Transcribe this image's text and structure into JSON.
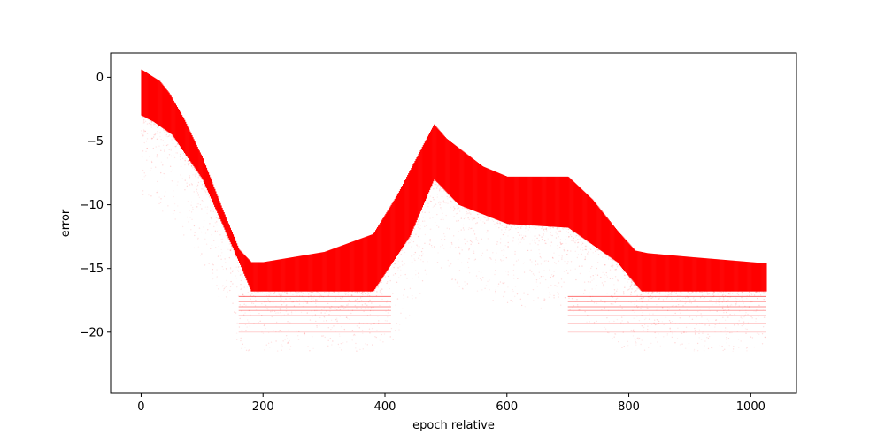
{
  "chart_data": {
    "type": "scatter",
    "title": "",
    "xlabel": "epoch relative",
    "ylabel": "error",
    "xlim": [
      -50,
      1075
    ],
    "ylim": [
      -24.8,
      1.9
    ],
    "xticks": [
      0,
      200,
      400,
      600,
      800,
      1000
    ],
    "yticks": [
      0,
      -5,
      -10,
      -15,
      -20
    ],
    "xtick_labels": [
      "0",
      "200",
      "400",
      "600",
      "800",
      "1000"
    ],
    "ytick_labels": [
      "0",
      "−5",
      "−10",
      "−15",
      "−20"
    ],
    "grid": false,
    "legend": "none",
    "color": "#ff0000",
    "x_range": [
      0,
      1025
    ],
    "upper_envelope": {
      "x": [
        0,
        10,
        30,
        45,
        70,
        100,
        130,
        160,
        180,
        200,
        300,
        380,
        420,
        460,
        480,
        500,
        560,
        600,
        700,
        740,
        780,
        810,
        830,
        900,
        1000,
        1025
      ],
      "y": [
        0.6,
        0.3,
        -0.3,
        -1.2,
        -3.3,
        -6.3,
        -10,
        -13.5,
        -14.5,
        -14.5,
        -13.7,
        -12.3,
        -9.2,
        -5.5,
        -3.7,
        -4.8,
        -7.0,
        -7.8,
        -7.8,
        -9.6,
        -12.0,
        -13.6,
        -13.8,
        -14.1,
        -14.5,
        -14.6
      ]
    },
    "dense_lower": {
      "x": [
        0,
        20,
        50,
        100,
        160,
        180,
        380,
        440,
        480,
        520,
        600,
        700,
        780,
        820,
        1025
      ],
      "y": [
        -3.0,
        -3.5,
        -4.5,
        -8.0,
        -14.5,
        -16.8,
        -16.8,
        -12.5,
        -8.0,
        -10.0,
        -11.5,
        -11.8,
        -14.5,
        -16.8,
        -16.8
      ]
    },
    "sparse_bands_y": [
      -17.2,
      -17.6,
      -18.0,
      -18.3,
      -18.7,
      -19.3,
      -20.0
    ],
    "sparse_bands_x_ranges": [
      [
        160,
        410
      ],
      [
        700,
        1025
      ]
    ]
  }
}
